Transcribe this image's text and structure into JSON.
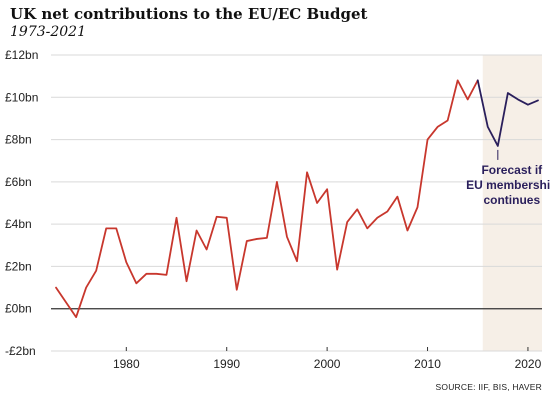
{
  "chart_data": {
    "type": "line",
    "title": "UK net contributions to the EU/EC Budget",
    "subtitle": "1973-2021",
    "xlabel": "",
    "ylabel": "",
    "xlim": [
      1972.5,
      2021.4
    ],
    "ylim": [
      -2,
      12
    ],
    "x_ticks": [
      1980,
      1990,
      2000,
      2010,
      2020
    ],
    "y_ticks": [
      {
        "value": 12,
        "label": "£12bn"
      },
      {
        "value": 10,
        "label": "£10bn"
      },
      {
        "value": 8,
        "label": "£8bn"
      },
      {
        "value": 6,
        "label": "£6bn"
      },
      {
        "value": 4,
        "label": "£4bn"
      },
      {
        "value": 2,
        "label": "£2bn"
      },
      {
        "value": 0,
        "label": "£0bn"
      },
      {
        "value": -2,
        "label": "-£2bn"
      }
    ],
    "grid": "horizontal",
    "shaded_region": {
      "x_start": 2015.5,
      "x_end": 2021.4
    },
    "annotation": [
      "Forecast if",
      "EU membership",
      "continues"
    ],
    "source": "SOURCE: IIF, BIS, HAVER",
    "series": [
      {
        "color": "#c8372d",
        "points": [
          [
            1973,
            1.0
          ],
          [
            1974,
            0.3
          ],
          [
            1975,
            -0.4
          ],
          [
            1976,
            1.0
          ],
          [
            1977,
            1.8
          ],
          [
            1978,
            3.8
          ],
          [
            1979,
            3.8
          ],
          [
            1980,
            2.2
          ],
          [
            1981,
            1.2
          ],
          [
            1982,
            1.65
          ],
          [
            1983,
            1.65
          ],
          [
            1984,
            1.6
          ],
          [
            1985,
            4.3
          ],
          [
            1986,
            1.3
          ],
          [
            1987,
            3.7
          ],
          [
            1988,
            2.8
          ],
          [
            1989,
            4.35
          ],
          [
            1990,
            4.3
          ],
          [
            1991,
            0.9
          ],
          [
            1992,
            3.2
          ],
          [
            1993,
            3.3
          ],
          [
            1994,
            3.35
          ],
          [
            1995,
            6.0
          ],
          [
            1996,
            3.4
          ],
          [
            1997,
            2.25
          ],
          [
            1998,
            6.45
          ],
          [
            1999,
            5.0
          ],
          [
            2000,
            5.65
          ],
          [
            2001,
            1.85
          ],
          [
            2002,
            4.1
          ],
          [
            2003,
            4.7
          ],
          [
            2004,
            3.8
          ],
          [
            2005,
            4.3
          ],
          [
            2006,
            4.6
          ],
          [
            2007,
            5.3
          ],
          [
            2008,
            3.7
          ],
          [
            2009,
            4.8
          ],
          [
            2010,
            8.0
          ],
          [
            2011,
            8.6
          ],
          [
            2012,
            8.9
          ],
          [
            2013,
            10.8
          ],
          [
            2014,
            9.9
          ],
          [
            2015,
            10.8
          ]
        ]
      },
      {
        "color": "#2a1f5c",
        "points": [
          [
            2015,
            10.8
          ],
          [
            2016,
            8.6
          ],
          [
            2017,
            7.7
          ],
          [
            2018,
            10.2
          ],
          [
            2019,
            9.9
          ],
          [
            2020,
            9.65
          ],
          [
            2021,
            9.85
          ]
        ]
      }
    ]
  }
}
